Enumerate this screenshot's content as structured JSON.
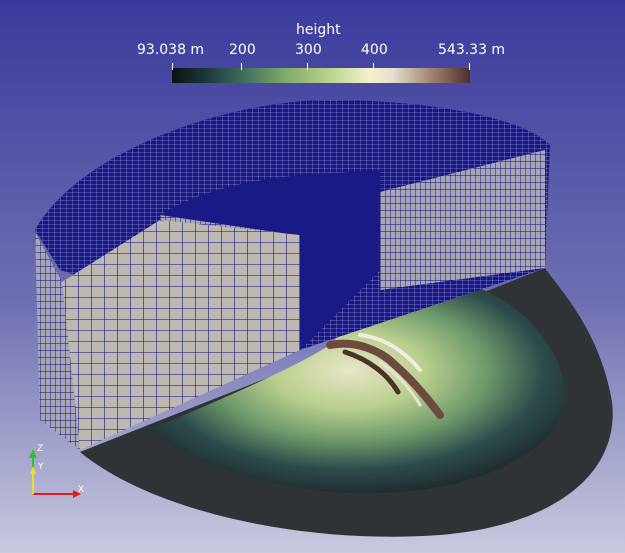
{
  "colorbar": {
    "title": "height",
    "labels": [
      "93.038 m",
      "200",
      "300",
      "400",
      "543.33 m"
    ]
  },
  "axes": {
    "x_label": "X",
    "y_label": "Y",
    "z_label": "Z"
  },
  "colors": {
    "background_top": "#3a3a9c",
    "background_bottom": "#c9c9df",
    "mesh_line": "#0b0b7a",
    "mesh_face": "#bdb9b2",
    "ground_dark": "#2f3335",
    "axis_x": "#e02020",
    "axis_y": "#e8e020",
    "axis_z": "#30c030"
  }
}
